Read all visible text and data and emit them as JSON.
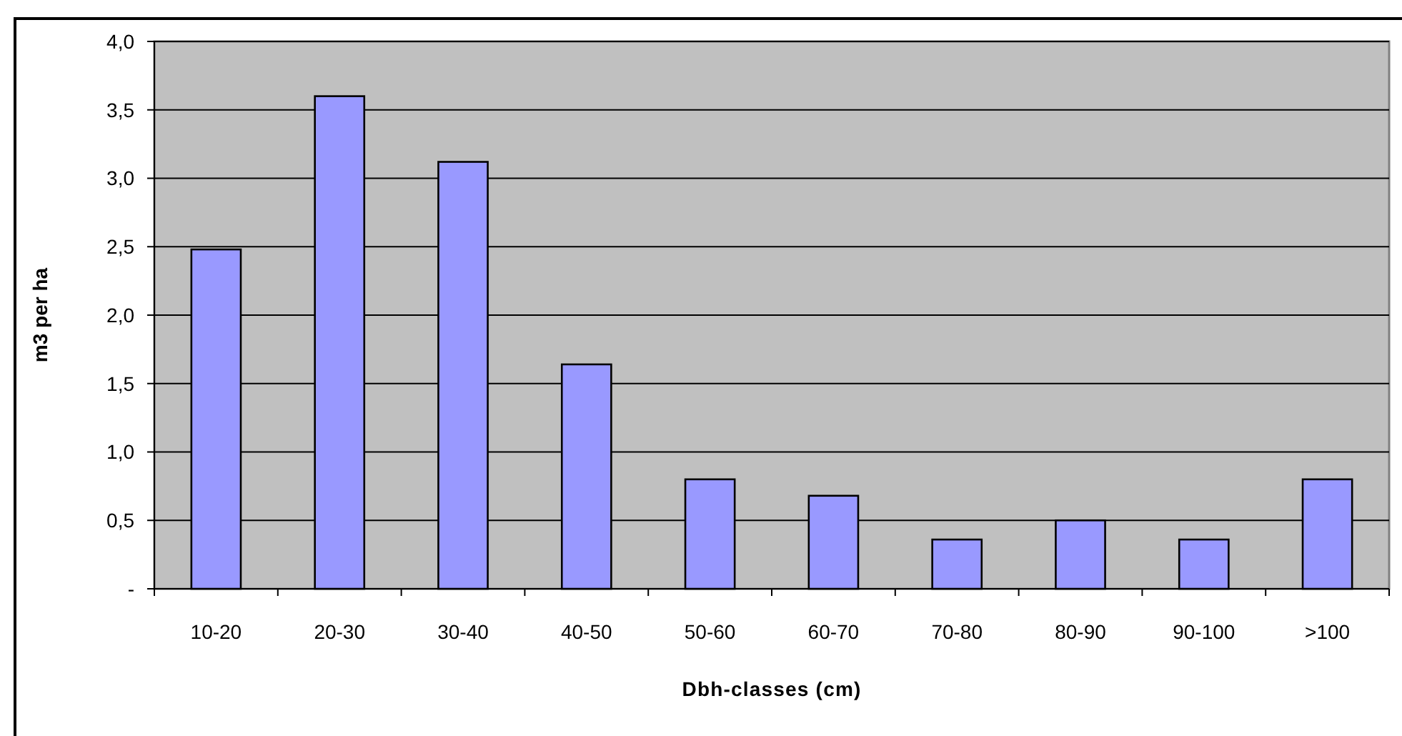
{
  "chart_data": {
    "type": "bar",
    "xlabel": "Dbh-classes (cm)",
    "ylabel": "m3 per ha",
    "categories": [
      "10-20",
      "20-30",
      "30-40",
      "40-50",
      "50-60",
      "60-70",
      "70-80",
      "80-90",
      "90-100",
      ">100"
    ],
    "values": [
      2.48,
      3.6,
      3.12,
      1.64,
      0.8,
      0.68,
      0.36,
      0.5,
      0.36,
      0.8
    ],
    "color": "#9999ff",
    "ylim": [
      0,
      4
    ],
    "yticks": [
      {
        "value": 0,
        "label": "-"
      },
      {
        "value": 0.5,
        "label": "0,5"
      },
      {
        "value": 1,
        "label": "1,0"
      },
      {
        "value": 1.5,
        "label": "1,5"
      },
      {
        "value": 2,
        "label": "2,0"
      },
      {
        "value": 2.5,
        "label": "2,5"
      },
      {
        "value": 3,
        "label": "3,0"
      },
      {
        "value": 3.5,
        "label": "3,5"
      },
      {
        "value": 4,
        "label": "4,0"
      }
    ],
    "grid": "y"
  }
}
